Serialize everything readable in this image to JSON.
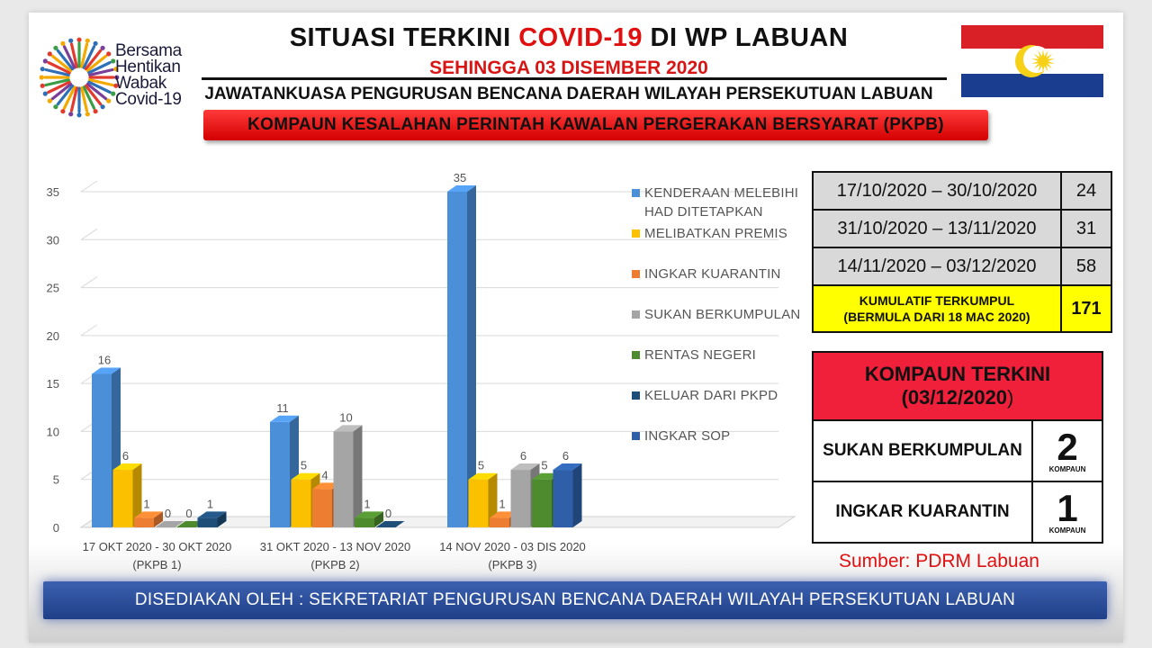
{
  "header": {
    "title_pre": "SITUASI TERKINI ",
    "title_red": "COVID-19",
    "title_post": " DI WP LABUAN",
    "subtitle": "SEHINGGA 03 DISEMBER 2020",
    "committee": "JAWATANKUASA PENGURUSAN BENCANA DAERAH WILAYAH PERSEKUTUAN  LABUAN",
    "banner": "KOMPAUN KESALAHAN PERINTAH KAWALAN PERGERAKAN BERSYARAT (PKPB)"
  },
  "logo": {
    "line1": "Bersama",
    "line2": "Hentikan",
    "line3": "Wabak",
    "line4": "Covid-19"
  },
  "colors": {
    "flag_red": "#d92027",
    "flag_blue": "#1a3d8f",
    "flag_yellow": "#f7d117"
  },
  "chart_data": {
    "type": "bar",
    "categories": [
      "17 OKT 2020 - 30 OKT 2020",
      "31 OKT 2020 - 13 NOV 2020",
      "14 NOV 2020 - 03 DIS 2020"
    ],
    "category_sublabels": [
      "(PKPB 1)",
      "(PKPB 2)",
      "(PKPB 3)"
    ],
    "series": [
      {
        "name": "KENDERAAN MELEBIHI HAD DITETAPKAN",
        "color": "#4a8fd8",
        "values": [
          16,
          11,
          35
        ]
      },
      {
        "name": "MELIBATKAN PREMIS",
        "color": "#fbc000",
        "values": [
          6,
          5,
          5
        ]
      },
      {
        "name": "INGKAR KUARANTIN",
        "color": "#ed7d31",
        "values": [
          1,
          4,
          1
        ]
      },
      {
        "name": "SUKAN BERKUMPULAN",
        "color": "#a5a5a5",
        "values": [
          0,
          10,
          6
        ]
      },
      {
        "name": "RENTAS NEGERI",
        "color": "#4e8a2e",
        "values": [
          0,
          1,
          5
        ]
      },
      {
        "name": "KELUAR DARI PKPD",
        "color": "#1f4e79",
        "values": [
          1,
          0,
          0
        ]
      },
      {
        "name": "INGKAR SOP",
        "color": "#2e5fa8",
        "values": [
          0,
          0,
          6
        ]
      }
    ],
    "category_series": [
      [
        0,
        1,
        2,
        3,
        4,
        5
      ],
      [
        0,
        1,
        2,
        3,
        4,
        5
      ],
      [
        0,
        1,
        2,
        3,
        4,
        6
      ]
    ],
    "ylim": [
      0,
      35
    ],
    "yticks": [
      0,
      5,
      10,
      15,
      20,
      25,
      30,
      35
    ],
    "grid": true,
    "legend": "right"
  },
  "summary": {
    "rows": [
      {
        "period": "17/10/2020 – 30/10/2020",
        "count": "24"
      },
      {
        "period": "31/10/2020 – 13/11/2020",
        "count": "31"
      },
      {
        "period": "14/11/2020 – 03/12/2020",
        "count": "58"
      }
    ],
    "cumulative_line1": "KUMULATIF TERKUMPUL",
    "cumulative_line2": "(BERMULA DARI 18 MAC 2020)",
    "cumulative_value": "171"
  },
  "latest": {
    "head_line1": "KOMPAUN TERKINI",
    "head_line2": "(03/12/2020",
    "head_paren": ")",
    "items": [
      {
        "name": "SUKAN BERKUMPULAN",
        "value": "2",
        "unit": "KOMPAUN"
      },
      {
        "name": "INGKAR KUARANTIN",
        "value": "1",
        "unit": "KOMPAUN"
      }
    ]
  },
  "source": "Sumber: PDRM Labuan",
  "footer": "DISEDIAKAN OLEH : SEKRETARIAT PENGURUSAN BENCANA DAERAH WILAYAH PERSEKUTUAN LABUAN"
}
